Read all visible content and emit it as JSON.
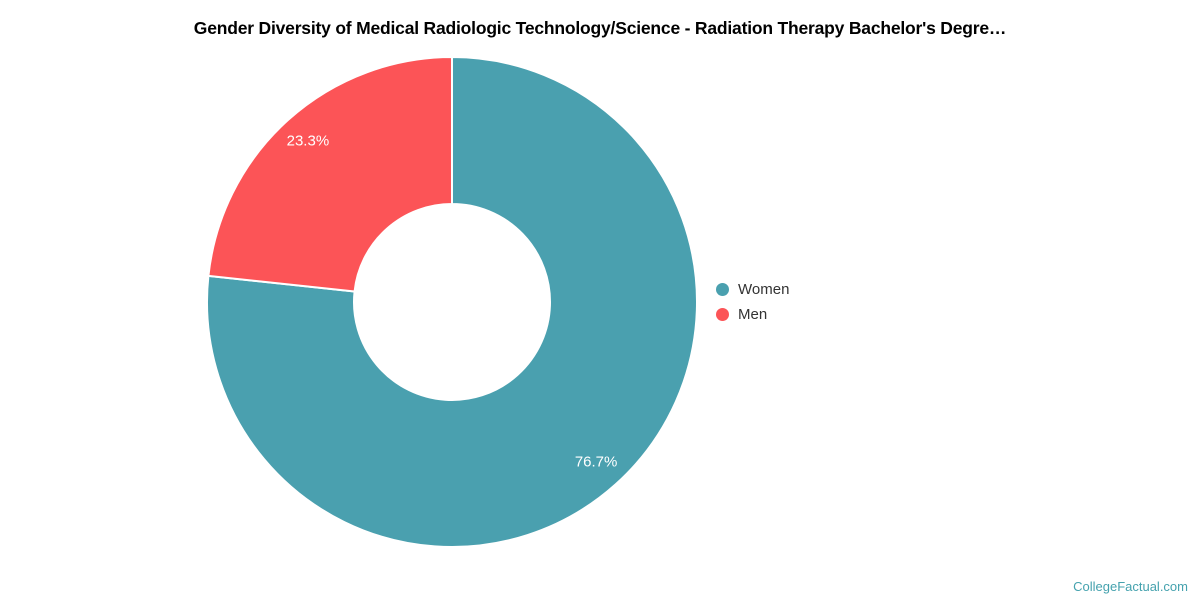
{
  "title": "Gender Diversity of Medical Radiologic Technology/Science - Radiation Therapy Bachelor's Degre…",
  "chart_data": {
    "type": "pie",
    "subtype": "donut",
    "title": "Gender Diversity of Medical Radiologic Technology/Science - Radiation Therapy Bachelor's Degre…",
    "categories": [
      "Women",
      "Men"
    ],
    "values": [
      76.7,
      23.3
    ],
    "value_labels": [
      "76.7%",
      "23.3%"
    ],
    "colors": [
      "#4AA0AF",
      "#FC5457"
    ],
    "slice_border_color": "#FFFFFF",
    "start_angle_deg": 0,
    "direction": "clockwise",
    "inner_radius_ratio": 0.4,
    "legend_position": "right"
  },
  "legend": {
    "items": [
      {
        "label": "Women",
        "color": "#4AA0AF"
      },
      {
        "label": "Men",
        "color": "#FC5457"
      }
    ]
  },
  "watermark": "CollegeFactual.com"
}
